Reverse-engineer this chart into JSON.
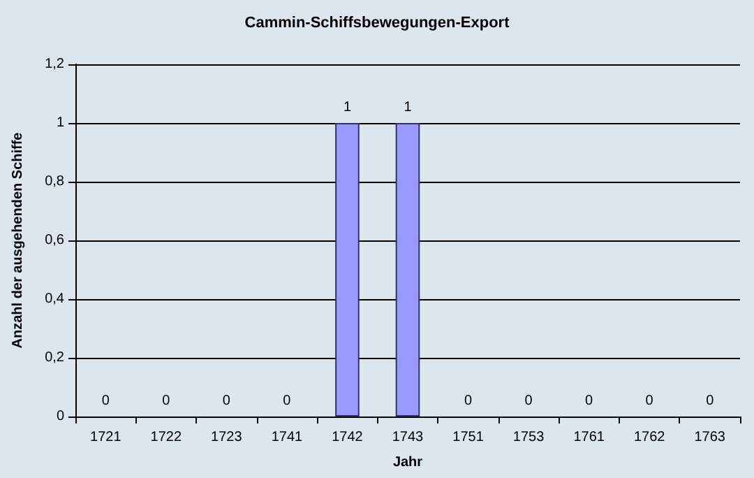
{
  "chart_data": {
    "type": "bar",
    "title": "Cammin-Schiffsbewegungen-Export",
    "xlabel": "Jahr",
    "ylabel": "Anzahl der ausgehenden Schiffe",
    "categories": [
      "1721",
      "1722",
      "1723",
      "1741",
      "1742",
      "1743",
      "1751",
      "1753",
      "1761",
      "1762",
      "1763"
    ],
    "values": [
      0,
      0,
      0,
      0,
      1,
      1,
      0,
      0,
      0,
      0,
      0
    ],
    "color": "#9999ff",
    "ylim": [
      0,
      1.2
    ],
    "yticks": [
      0,
      {
        "value": 0.2,
        "label": "0,2"
      },
      {
        "value": 0.4,
        "label": "0,4"
      },
      {
        "value": 0.6,
        "label": "0,6"
      },
      {
        "value": 0.8,
        "label": "0,8"
      },
      1,
      {
        "value": 1.2,
        "label": "1,2"
      }
    ],
    "grid": "y",
    "data_labels": true
  }
}
